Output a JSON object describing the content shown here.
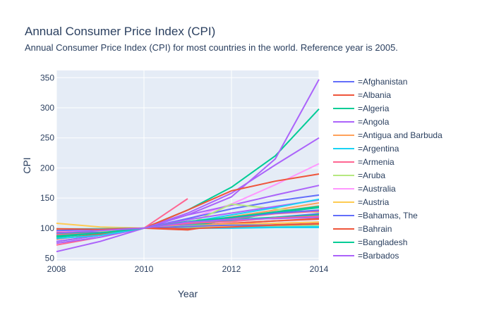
{
  "title": "Annual Consumer Price Index (CPI)",
  "subtitle": "Annual Consumer Price Index (CPI) for most countries in the world. Reference year is 2005.",
  "chart_data": {
    "type": "line",
    "xlabel": "Year",
    "ylabel": "CPI",
    "xlim": [
      2008,
      2014
    ],
    "ylim": [
      46,
      362
    ],
    "x_ticks": [
      "2008",
      "2010",
      "2012",
      "2014"
    ],
    "y_ticks": [
      "50",
      "100",
      "150",
      "200",
      "250",
      "300",
      "350"
    ],
    "grid": true,
    "legend_position": "right",
    "series": [
      {
        "name": "=Afghanistan",
        "color": "#636efa",
        "x": [
          2008,
          2009,
          2010,
          2011,
          2012,
          2013,
          2014
        ],
        "values": [
          92,
          93,
          100,
          111,
          117,
          125,
          130
        ]
      },
      {
        "name": "=Albania",
        "color": "#EF553B",
        "x": [
          2008,
          2009,
          2010,
          2011,
          2012,
          2013,
          2014
        ],
        "values": [
          94,
          97,
          100,
          103,
          105,
          107,
          109
        ]
      },
      {
        "name": "=Algeria",
        "color": "#00cc96",
        "x": [
          2008,
          2009,
          2010,
          2011,
          2012,
          2013,
          2014
        ],
        "values": [
          90,
          96,
          100,
          104,
          113,
          117,
          120
        ]
      },
      {
        "name": "=Angola",
        "color": "#ab63fa",
        "x": [
          2008,
          2009,
          2010,
          2011,
          2012,
          2013,
          2014
        ],
        "values": [
          75,
          85,
          100,
          114,
          125,
          136,
          147
        ]
      },
      {
        "name": "=Antigua and Barbuda",
        "color": "#FFA15A",
        "x": [
          2008,
          2009,
          2010,
          2011,
          2012,
          2013,
          2014
        ],
        "values": [
          95,
          97,
          100,
          104,
          107,
          108,
          110
        ]
      },
      {
        "name": "=Argentina",
        "color": "#19d3f3",
        "x": [
          2008,
          2009,
          2010,
          2011,
          2012,
          2013,
          2014
        ],
        "values": [
          83,
          88,
          100,
          110,
          122,
          134,
          148
        ]
      },
      {
        "name": "=Armenia",
        "color": "#FF6692",
        "x": [
          2008,
          2009,
          2010,
          2011,
          2012,
          2013,
          2014
        ],
        "values": [
          89,
          92,
          100,
          108,
          111,
          117,
          120
        ]
      },
      {
        "name": "=Aruba",
        "color": "#B6E880",
        "x": [
          2008,
          2009,
          2010,
          2011,
          2012,
          2013,
          2014
        ],
        "values": [
          97,
          95,
          100,
          104,
          105,
          104,
          105
        ]
      },
      {
        "name": "=Australia",
        "color": "#FF97FF",
        "x": [
          2008,
          2009,
          2010,
          2011,
          2012,
          2013,
          2014
        ],
        "values": [
          95,
          97,
          100,
          103,
          105,
          108,
          110
        ]
      },
      {
        "name": "=Austria",
        "color": "#FECB52",
        "x": [
          2008,
          2009,
          2010,
          2011,
          2012,
          2013,
          2014
        ],
        "values": [
          97,
          98,
          100,
          103,
          106,
          108,
          110
        ]
      },
      {
        "name": "=Bahamas, The",
        "color": "#636efa",
        "x": [
          2008,
          2009,
          2010,
          2011,
          2012,
          2013,
          2014
        ],
        "values": [
          96,
          98,
          100,
          103,
          105,
          105,
          107
        ]
      },
      {
        "name": "=Bahrain",
        "color": "#EF553B",
        "x": [
          2008,
          2009,
          2010,
          2011,
          2012,
          2013,
          2014
        ],
        "values": [
          99,
          98,
          100,
          99,
          102,
          105,
          107
        ]
      },
      {
        "name": "=Bangladesh",
        "color": "#00cc96",
        "x": [
          2008,
          2009,
          2010,
          2011,
          2012,
          2013,
          2014
        ],
        "values": [
          87,
          92,
          100,
          111,
          118,
          127,
          136
        ]
      },
      {
        "name": "=Barbados",
        "color": "#ab63fa",
        "x": [
          2008,
          2009,
          2010,
          2011,
          2012,
          2013,
          2014
        ],
        "values": [
          92,
          96,
          100,
          110,
          114,
          116,
          118
        ]
      }
    ],
    "unlisted_series": [
      {
        "color": "#00cc96",
        "x": [
          2008,
          2009,
          2010,
          2011,
          2012,
          2013,
          2014
        ],
        "values": [
          78,
          88,
          100,
          130,
          168,
          220,
          298
        ]
      },
      {
        "color": "#ab63fa",
        "x": [
          2008,
          2009,
          2010,
          2011,
          2012,
          2013,
          2014
        ],
        "values": [
          61,
          78,
          100,
          122,
          152,
          215,
          347
        ]
      },
      {
        "color": "#ab63fa",
        "x": [
          2008,
          2009,
          2010,
          2011,
          2012,
          2013,
          2014
        ],
        "values": [
          78,
          88,
          100,
          125,
          158,
          205,
          250
        ]
      },
      {
        "color": "#FF97FF",
        "x": [
          2008,
          2009,
          2010,
          2011,
          2012,
          2013,
          2014
        ],
        "values": [
          86,
          92,
          100,
          115,
          140,
          172,
          207
        ]
      },
      {
        "color": "#EF553B",
        "x": [
          2008,
          2009,
          2010,
          2011,
          2012,
          2013,
          2014
        ],
        "values": [
          82,
          90,
          100,
          130,
          162,
          178,
          190
        ]
      },
      {
        "color": "#ab63fa",
        "x": [
          2008,
          2009,
          2010,
          2011,
          2012,
          2013,
          2014
        ],
        "values": [
          88,
          93,
          100,
          122,
          138,
          155,
          171
        ]
      },
      {
        "color": "#636efa",
        "x": [
          2008,
          2009,
          2010,
          2011,
          2012,
          2013,
          2014
        ],
        "values": [
          86,
          92,
          100,
          116,
          132,
          145,
          155
        ]
      },
      {
        "color": "#FF6692",
        "x": [
          2008,
          2009,
          2010,
          2011
        ],
        "values": [
          72,
          85,
          100,
          149
        ]
      },
      {
        "color": "#EF553B",
        "x": [
          2008,
          2009,
          2010,
          2011,
          2012,
          2013,
          2014
        ],
        "values": [
          90,
          95,
          100,
          97,
          108,
          112,
          115
        ]
      },
      {
        "color": "#FECB52",
        "x": [
          2008,
          2009,
          2010,
          2011,
          2012,
          2013,
          2014
        ],
        "values": [
          108,
          102,
          100,
          101,
          103,
          104,
          106
        ]
      },
      {
        "color": "#19d3f3",
        "x": [
          2008,
          2009,
          2010,
          2011,
          2012,
          2013,
          2014
        ],
        "values": [
          98,
          99,
          100,
          100,
          101,
          102,
          103
        ]
      },
      {
        "color": "#FFA15A",
        "x": [
          2008,
          2009,
          2010,
          2011,
          2012,
          2013,
          2014
        ],
        "values": [
          90,
          95,
          100,
          107,
          119,
          130,
          142
        ]
      },
      {
        "color": "#B6E880",
        "x": [
          2008,
          2009,
          2010,
          2011,
          2012,
          2013,
          2014
        ],
        "values": [
          94,
          97,
          100,
          106,
          140,
          132,
          126
        ]
      },
      {
        "color": "#00cc96",
        "x": [
          2008,
          2009,
          2010,
          2011,
          2012,
          2013,
          2014
        ],
        "values": [
          96,
          98,
          100,
          104,
          113,
          126,
          134
        ]
      },
      {
        "color": "#FF6692",
        "x": [
          2008,
          2009,
          2010,
          2011,
          2012,
          2013,
          2014
        ],
        "values": [
          95,
          97,
          100,
          107,
          116,
          124,
          128
        ]
      },
      {
        "color": "#636efa",
        "x": [
          2008,
          2009,
          2010,
          2011,
          2012,
          2013,
          2014
        ],
        "values": [
          95,
          97,
          100,
          106,
          112,
          118,
          124
        ]
      },
      {
        "color": "#EF553B",
        "x": [
          2008,
          2009,
          2010,
          2011,
          2012,
          2013,
          2014
        ],
        "values": [
          97,
          98,
          100,
          104,
          108,
          112,
          116
        ]
      },
      {
        "color": "#19d3f3",
        "x": [
          2008,
          2009,
          2010,
          2011,
          2012,
          2013,
          2014
        ],
        "values": [
          99,
          99,
          100,
          100,
          100,
          101,
          101
        ]
      },
      {
        "color": "#FFA15A",
        "x": [
          2008,
          2009,
          2010,
          2011,
          2012,
          2013,
          2014
        ],
        "values": [
          86,
          93,
          100,
          110,
          118,
          127,
          137
        ]
      },
      {
        "color": "#00cc96",
        "x": [
          2008,
          2009,
          2010,
          2011,
          2012,
          2013,
          2014
        ],
        "values": [
          85,
          92,
          100,
          109,
          114,
          118,
          122
        ]
      }
    ]
  }
}
